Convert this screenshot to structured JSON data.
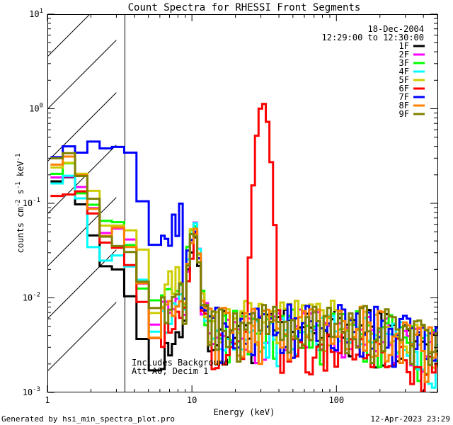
{
  "chart_data": {
    "type": "line",
    "title": "Count Spectra for RHESSI Front Segments",
    "xlabel": "Energy (keV)",
    "ylabel_main": "counts cm",
    "ylabel_sup1": "-2",
    "ylabel_mid": " s",
    "ylabel_sup2": "-1",
    "ylabel_end": " keV",
    "ylabel_sup3": "-1",
    "xscale": "log",
    "yscale": "log",
    "xlim": [
      1,
      500
    ],
    "ylim": [
      0.001,
      10
    ],
    "x_ticks": [
      {
        "value": 1,
        "label": "1"
      },
      {
        "value": 10,
        "label": "10"
      },
      {
        "value": 100,
        "label": "100"
      }
    ],
    "y_ticks": [
      {
        "value": 0.001,
        "base": "10",
        "exp": "-3"
      },
      {
        "value": 0.01,
        "base": "10",
        "exp": "-2"
      },
      {
        "value": 0.1,
        "base": "10",
        "exp": "-1"
      },
      {
        "value": 1,
        "base": "10",
        "exp": "0"
      },
      {
        "value": 10,
        "base": "10",
        "exp": "1"
      }
    ],
    "date": "18-Dec-2004",
    "time_range": "12:29:00 to 12:30:00",
    "hatched_below_keV": 3,
    "annotation_line1": "Includes Background",
    "annotation_line2": "Att A0, Decim 1",
    "series": [
      {
        "name": "1F",
        "color": "#000000",
        "low": [
          0.2,
          0.1,
          0.04,
          0.022,
          0.012,
          0.007
        ],
        "peak": 0.045,
        "line": 0.0045
      },
      {
        "name": "2F",
        "color": "#ff00ff",
        "low": [
          0.22,
          0.14,
          0.09,
          0.055,
          0.04,
          0.03
        ],
        "peak": 0.05,
        "line": 0.0045
      },
      {
        "name": "3F",
        "color": "#00ff00",
        "low": [
          0.24,
          0.15,
          0.085,
          0.06,
          0.04,
          0.03
        ],
        "peak": 0.06,
        "line": 0.0045
      },
      {
        "name": "4F",
        "color": "#00ffff",
        "low": [
          0.19,
          0.12,
          0.035,
          0.025,
          0.02,
          0.018
        ],
        "peak": 0.05,
        "line": 0.004
      },
      {
        "name": "5F",
        "color": "#cccc00",
        "low": [
          0.28,
          0.2,
          0.12,
          0.065,
          0.055,
          0.04
        ],
        "peak": 0.05,
        "line": 0.0055
      },
      {
        "name": "6F",
        "color": "#ff0000",
        "low": [
          0.14,
          0.12,
          0.08,
          0.035,
          0.02,
          0.012
        ],
        "peak": 0.04,
        "line": 1.15
      },
      {
        "name": "7F",
        "color": "#0000ff",
        "low": [
          0.36,
          0.38,
          0.4,
          0.38,
          0.35,
          0.15
        ],
        "peak": 0.055,
        "line": 0.005
      },
      {
        "name": "8F",
        "color": "#ff8000",
        "low": [
          0.3,
          0.2,
          0.09,
          0.05,
          0.03,
          0.022
        ],
        "peak": 0.045,
        "line": 0.0048
      },
      {
        "name": "9F",
        "color": "#808000",
        "low": [
          0.35,
          0.18,
          0.1,
          0.04,
          0.03,
          0.025
        ],
        "peak": 0.05,
        "line": 0.005
      }
    ]
  },
  "footer": {
    "generator": "Generated by hsi_min_spectra_plot.pro",
    "timestamp": "12-Apr-2023 23:29"
  }
}
